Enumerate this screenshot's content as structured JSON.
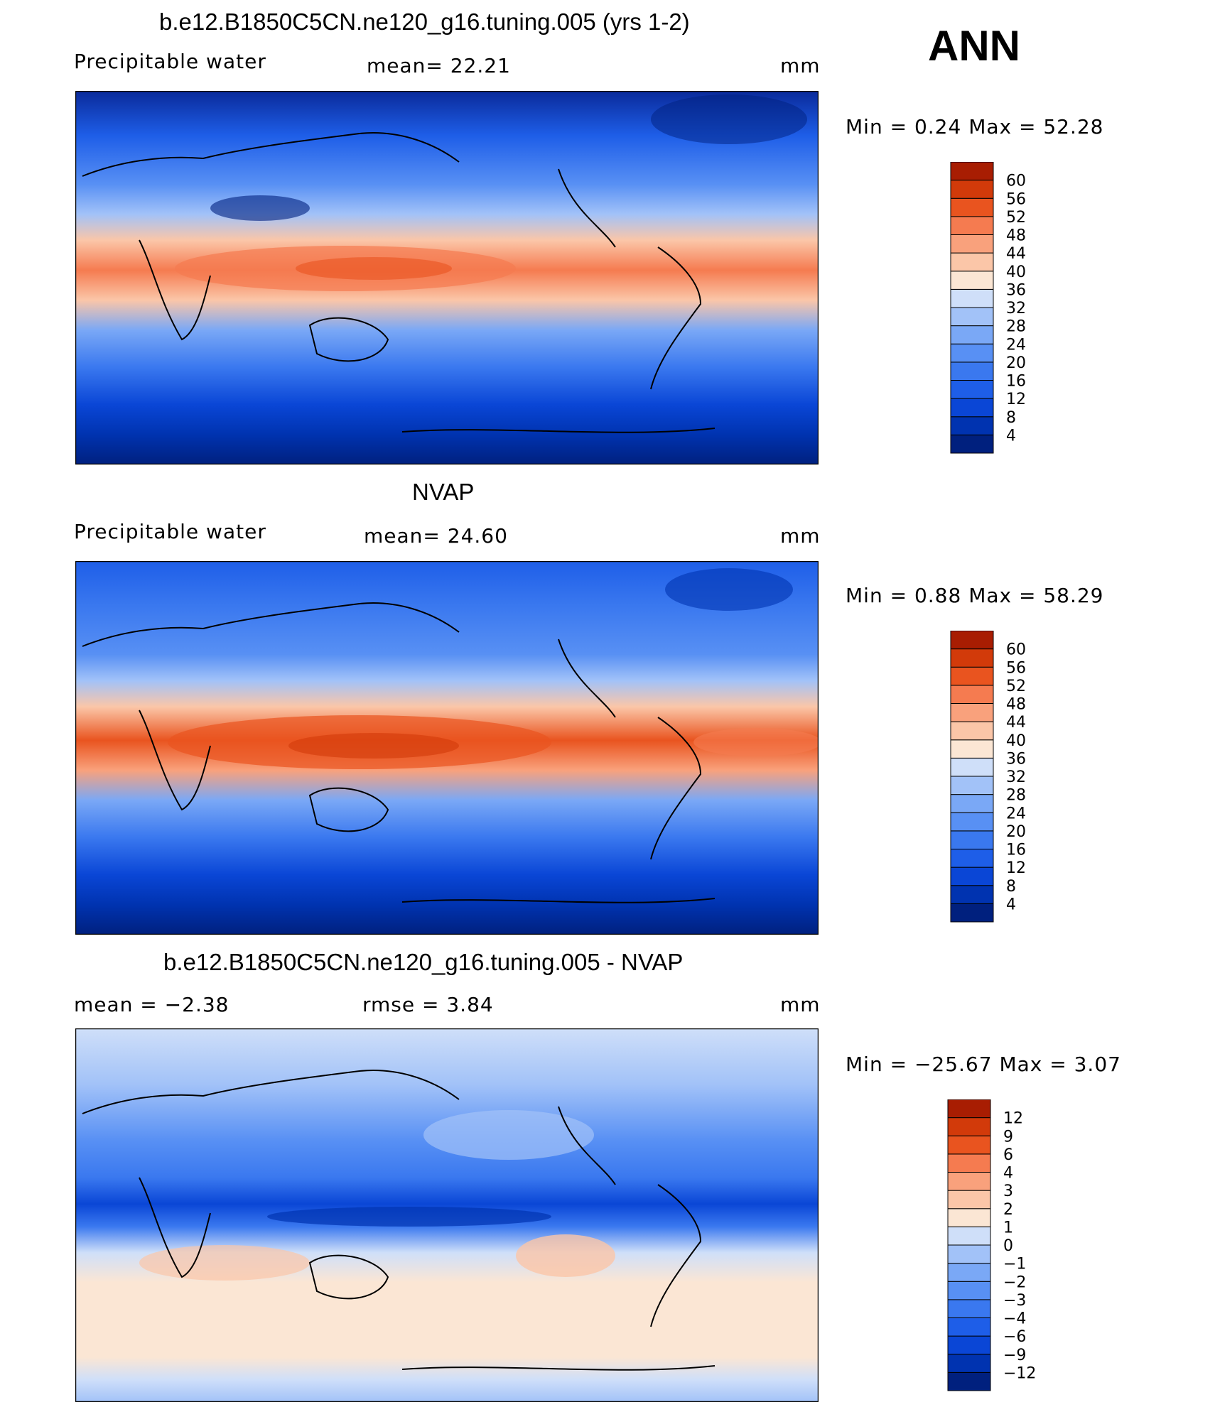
{
  "season": "ANN",
  "panels": [
    {
      "title": "b.e12.B1850C5CN.ne120_g16.tuning.005 (yrs 1-2)",
      "left_label": "Precipitable  water",
      "mid_label": "mean=   22.21",
      "units": "mm",
      "minmax": "Min  =     0.24  Max  =     52.28"
    },
    {
      "title": "NVAP",
      "left_label": "Precipitable  water",
      "mid_label": "mean=   24.60",
      "units": "mm",
      "minmax": "Min  =     0.88  Max  =     58.29"
    },
    {
      "title": "b.e12.B1850C5CN.ne120_g16.tuning.005 - NVAP",
      "left_label": "mean  =    −2.38",
      "mid_label": "rmse  =     3.84",
      "units": "mm",
      "minmax": "Min  = −25.67  Max  =      3.07"
    }
  ],
  "chart_data": [
    {
      "type": "heatmap",
      "title": "b.e12.B1850C5CN.ne120_g16.tuning.005 (yrs 1-2)",
      "variable": "Precipitable  water",
      "units": "mm",
      "mean": 22.21,
      "min": 0.24,
      "max": 52.28,
      "colorbar_levels": [
        4,
        8,
        12,
        16,
        20,
        24,
        28,
        32,
        36,
        40,
        44,
        48,
        52,
        56,
        60
      ],
      "colorbar_colors": [
        "#00207e",
        "#0033b0",
        "#0a46d6",
        "#1e5ee8",
        "#3a78ef",
        "#5890f4",
        "#7aa8f6",
        "#a2c2f8",
        "#cfdff9",
        "#fbe6d4",
        "#fbc6a8",
        "#f9a17c",
        "#f57b50",
        "#e9541f",
        "#d23a0a",
        "#a81d02"
      ]
    },
    {
      "type": "heatmap",
      "title": "NVAP",
      "variable": "Precipitable  water",
      "units": "mm",
      "mean": 24.6,
      "min": 0.88,
      "max": 58.29,
      "colorbar_levels": [
        4,
        8,
        12,
        16,
        20,
        24,
        28,
        32,
        36,
        40,
        44,
        48,
        52,
        56,
        60
      ],
      "colorbar_colors": [
        "#00207e",
        "#0033b0",
        "#0a46d6",
        "#1e5ee8",
        "#3a78ef",
        "#5890f4",
        "#7aa8f6",
        "#a2c2f8",
        "#cfdff9",
        "#fbe6d4",
        "#fbc6a8",
        "#f9a17c",
        "#f57b50",
        "#e9541f",
        "#d23a0a",
        "#a81d02"
      ]
    },
    {
      "type": "heatmap",
      "title": "b.e12.B1850C5CN.ne120_g16.tuning.005 - NVAP",
      "units": "mm",
      "mean": -2.38,
      "rmse": 3.84,
      "min": -25.67,
      "max": 3.07,
      "colorbar_levels": [
        -12,
        -9,
        -6,
        -4,
        -3,
        -2,
        -1,
        0,
        1,
        2,
        3,
        4,
        6,
        9,
        12
      ],
      "colorbar_labels": [
        "−12",
        "−9",
        "−6",
        "−4",
        "−3",
        "−2",
        "−1",
        "0",
        "1",
        "2",
        "3",
        "4",
        "6",
        "9",
        "12"
      ],
      "colorbar_colors": [
        "#00207e",
        "#0033b0",
        "#0a46d6",
        "#1e5ee8",
        "#3a78ef",
        "#5890f4",
        "#7aa8f6",
        "#a2c2f8",
        "#cfdff9",
        "#fbe6d4",
        "#fbc6a8",
        "#f9a17c",
        "#f57b50",
        "#e9541f",
        "#d23a0a",
        "#a81d02"
      ]
    }
  ]
}
